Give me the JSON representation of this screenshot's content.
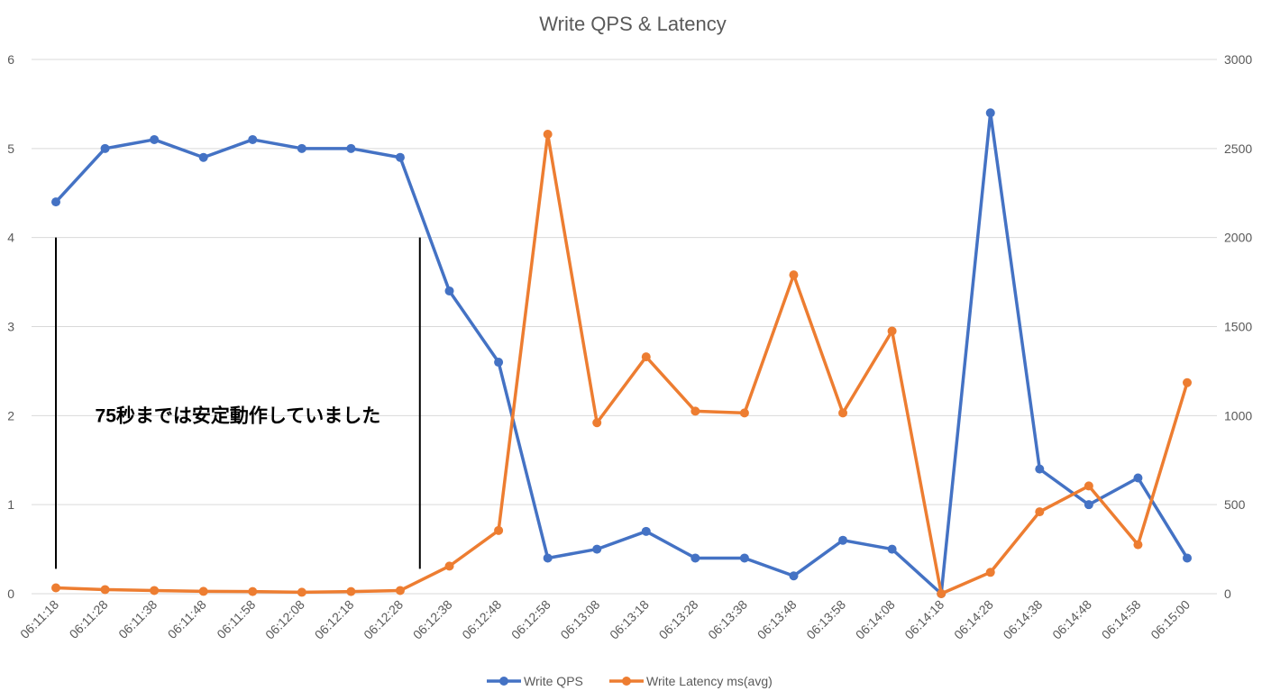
{
  "chart_data": {
    "type": "line",
    "title": "Write QPS & Latency",
    "categories": [
      "06:11:18",
      "06:11:28",
      "06:11:38",
      "06:11:48",
      "06:11:58",
      "06:12:08",
      "06:12:18",
      "06:12:28",
      "06:12:38",
      "06:12:48",
      "06:12:58",
      "06:13:08",
      "06:13:18",
      "06:13:28",
      "06:13:38",
      "06:13:48",
      "06:13:58",
      "06:14:08",
      "06:14:18",
      "06:14:28",
      "06:14:38",
      "06:14:48",
      "06:14:58",
      "06:15:00"
    ],
    "y_left": {
      "min": 0,
      "max": 6,
      "ticks": [
        "0",
        "1",
        "2",
        "3",
        "4",
        "5",
        "6"
      ]
    },
    "y_right": {
      "min": 0,
      "max": 3000,
      "ticks": [
        "0",
        "500",
        "1000",
        "1500",
        "2000",
        "2500",
        "3000"
      ]
    },
    "grid": true,
    "legend_position": "bottom",
    "series": [
      {
        "name": "Write QPS",
        "axis": "left",
        "color": "#4472c4",
        "values": [
          4.4,
          5.0,
          5.1,
          4.9,
          5.1,
          5.0,
          5.0,
          4.9,
          3.4,
          2.6,
          0.4,
          0.5,
          0.7,
          0.4,
          0.4,
          0.2,
          0.6,
          0.5,
          0.0,
          5.4,
          1.4,
          1.0,
          1.3,
          0.4
        ]
      },
      {
        "name": "Write Latency ms(avg)",
        "axis": "right",
        "color": "#ed7d31",
        "values": [
          33,
          23,
          18,
          13,
          12,
          8,
          12,
          18,
          155,
          355,
          2580,
          960,
          1330,
          1025,
          1015,
          1790,
          1015,
          1475,
          0,
          120,
          460,
          605,
          275,
          1185
        ]
      }
    ],
    "annotation": {
      "text": "75秒までは安定動作していました",
      "from_category": "06:11:18",
      "to_category": "06:12:32",
      "y_top": 4.0,
      "y_bottom": 0.28
    }
  }
}
